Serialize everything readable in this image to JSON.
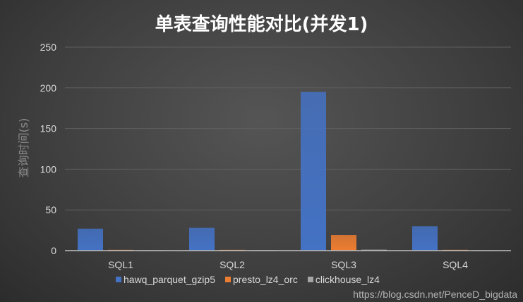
{
  "chart_data": {
    "type": "bar",
    "title": "单表查询性能对比(并发1)",
    "xlabel": "",
    "ylabel": "查询时间(s)",
    "ylim": [
      0,
      250
    ],
    "yticks": [
      0,
      50,
      100,
      150,
      200,
      250
    ],
    "grid": true,
    "legend": "bottom",
    "categories": [
      "SQL1",
      "SQL2",
      "SQL3",
      "SQL4"
    ],
    "series": [
      {
        "name": "hawq_parquet_gzip5",
        "color": "#4472c4",
        "values": [
          27,
          28,
          195,
          30
        ]
      },
      {
        "name": "presto_lz4_orc",
        "color": "#ed7d31",
        "values": [
          1,
          1,
          19,
          1
        ]
      },
      {
        "name": "clickhouse_lz4",
        "color": "#a5a5a5",
        "values": [
          0.3,
          0.3,
          1.2,
          0.3
        ]
      }
    ]
  },
  "watermark": "https://blog.csdn.net/PenceD_bigdata"
}
